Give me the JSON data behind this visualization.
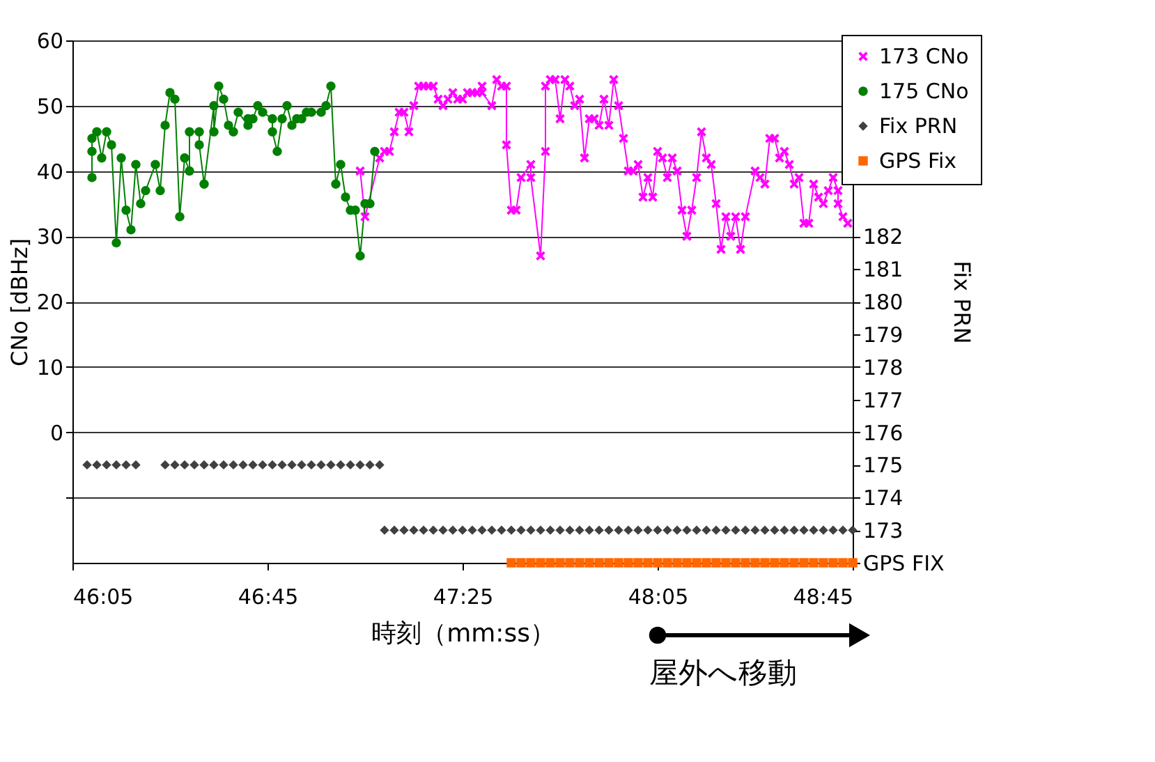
{
  "chart_data": {
    "type": "line",
    "xlabel": "時刻（mm:ss）",
    "ylabel": "CNo [dBHz]",
    "y2label": "Fix PRN",
    "xlim": [
      2765,
      2925
    ],
    "xticks": [
      {
        "value": 2765,
        "label": "46:05"
      },
      {
        "value": 2805,
        "label": "46:45"
      },
      {
        "value": 2845,
        "label": "47:25"
      },
      {
        "value": 2885,
        "label": "48:05"
      },
      {
        "value": 2925,
        "label": "48:45"
      }
    ],
    "ylim": [
      -20,
      60
    ],
    "yticks": [
      {
        "value": -10,
        "label": null
      },
      0,
      10,
      20,
      30,
      40,
      50,
      60
    ],
    "y2lim": [
      172,
      188
    ],
    "y2ticks": [
      {
        "value": 172,
        "label": "GPS FIX"
      },
      173,
      174,
      175,
      176,
      177,
      178,
      179,
      180,
      181,
      182
    ],
    "grid": "y",
    "legend": "top right",
    "annotations": [
      "屋外へ移動"
    ],
    "series": [
      {
        "name": "173 CNo",
        "color": "#ff00ff",
        "marker": "cross",
        "x": [
          2824,
          2825,
          2828,
          2829,
          2830,
          2831,
          2832,
          2833,
          2834,
          2835,
          2836,
          2837,
          2838,
          2839,
          2840,
          2841,
          2842,
          2843,
          2844,
          2845,
          2846,
          2847,
          2848,
          2849,
          2849,
          2851,
          2852,
          2853,
          2854,
          2854,
          2855,
          2856,
          2857,
          2859,
          2859,
          2861,
          2862,
          2862,
          2863,
          2864,
          2865,
          2866,
          2867,
          2868,
          2869,
          2870,
          2871,
          2872,
          2873,
          2874,
          2875,
          2876,
          2877,
          2878,
          2879,
          2880,
          2881,
          2882,
          2883,
          2884,
          2885,
          2886,
          2887,
          2888,
          2889,
          2890,
          2891,
          2892,
          2893,
          2894,
          2895,
          2896,
          2897,
          2898,
          2899,
          2900,
          2901,
          2902,
          2903,
          2905,
          2906,
          2907,
          2908,
          2909,
          2910,
          2911,
          2912,
          2913,
          2914,
          2915,
          2916,
          2917,
          2918,
          2919,
          2920,
          2921,
          2922,
          2922,
          2923,
          2924
        ],
        "values": [
          40,
          33,
          42,
          43,
          43,
          46,
          49,
          49,
          46,
          50,
          53,
          53,
          53,
          53,
          51,
          50,
          51,
          52,
          51,
          51,
          52,
          52,
          52,
          53,
          52,
          50,
          54,
          53,
          53,
          44,
          34,
          34,
          39,
          41,
          39,
          27,
          43,
          53,
          54,
          54,
          48,
          54,
          53,
          50,
          51,
          42,
          48,
          48,
          47,
          51,
          47,
          54,
          50,
          45,
          40,
          40,
          41,
          36,
          39,
          36,
          43,
          42,
          39,
          42,
          40,
          34,
          30,
          34,
          39,
          46,
          42,
          41,
          35,
          28,
          33,
          30,
          33,
          28,
          33,
          40,
          39,
          38,
          45,
          45,
          42,
          43,
          41,
          38,
          39,
          32,
          32,
          38,
          36,
          35,
          37,
          39,
          37,
          35,
          33,
          32
        ]
      },
      {
        "name": "175 CNo",
        "color": "#008000",
        "marker": "circle",
        "x": [
          2769,
          2769,
          2769,
          2770,
          2771,
          2772,
          2773,
          2774,
          2775,
          2776,
          2777,
          2778,
          2779,
          2780,
          2782,
          2783,
          2784,
          2785,
          2786,
          2787,
          2788,
          2789,
          2789,
          2791,
          2791,
          2792,
          2794,
          2794,
          2795,
          2796,
          2797,
          2798,
          2799,
          2801,
          2801,
          2802,
          2803,
          2804,
          2806,
          2806,
          2807,
          2808,
          2809,
          2810,
          2811,
          2812,
          2813,
          2814,
          2816,
          2817,
          2818,
          2819,
          2820,
          2821,
          2822,
          2823,
          2824,
          2825,
          2826,
          2827
        ],
        "values": [
          39,
          43,
          45,
          46,
          42,
          46,
          44,
          29,
          42,
          34,
          31,
          41,
          35,
          37,
          41,
          37,
          47,
          52,
          51,
          33,
          42,
          40,
          46,
          46,
          44,
          38,
          50,
          46,
          53,
          51,
          47,
          46,
          49,
          47,
          48,
          48,
          50,
          49,
          48,
          46,
          43,
          48,
          50,
          47,
          48,
          48,
          49,
          49,
          49,
          50,
          53,
          38,
          41,
          36,
          34,
          34,
          27,
          35,
          35,
          43
        ]
      },
      {
        "name": "Fix PRN",
        "color": "#404040",
        "type": "scatter",
        "marker": "diamond",
        "axis": "y2",
        "x": [
          2768,
          2770,
          2772,
          2774,
          2776,
          2778,
          2784,
          2786,
          2788,
          2790,
          2792,
          2794,
          2796,
          2798,
          2800,
          2802,
          2804,
          2806,
          2808,
          2810,
          2812,
          2814,
          2816,
          2818,
          2820,
          2822,
          2824,
          2826,
          2828,
          2829,
          2831,
          2833,
          2835,
          2837,
          2839,
          2841,
          2843,
          2845,
          2847,
          2849,
          2851,
          2853,
          2855,
          2857,
          2859,
          2861,
          2863,
          2865,
          2867,
          2869,
          2871,
          2873,
          2875,
          2877,
          2879,
          2881,
          2883,
          2885,
          2887,
          2889,
          2891,
          2893,
          2895,
          2897,
          2899,
          2901,
          2903,
          2905,
          2907,
          2909,
          2911,
          2913,
          2915,
          2917,
          2919,
          2921,
          2923,
          2925
        ],
        "values": [
          175,
          175,
          175,
          175,
          175,
          175,
          175,
          175,
          175,
          175,
          175,
          175,
          175,
          175,
          175,
          175,
          175,
          175,
          175,
          175,
          175,
          175,
          175,
          175,
          175,
          175,
          175,
          175,
          175,
          173,
          173,
          173,
          173,
          173,
          173,
          173,
          173,
          173,
          173,
          173,
          173,
          173,
          173,
          173,
          173,
          173,
          173,
          173,
          173,
          173,
          173,
          173,
          173,
          173,
          173,
          173,
          173,
          173,
          173,
          173,
          173,
          173,
          173,
          173,
          173,
          173,
          173,
          173,
          173,
          173,
          173,
          173,
          173,
          173,
          173,
          173,
          173,
          173
        ]
      },
      {
        "name": "GPS Fix",
        "color": "#ff6600",
        "type": "scatter",
        "marker": "square",
        "axis": "y2",
        "x": [
          2855,
          2857,
          2859,
          2861,
          2863,
          2865,
          2867,
          2869,
          2871,
          2873,
          2875,
          2877,
          2879,
          2881,
          2883,
          2885,
          2887,
          2889,
          2891,
          2893,
          2895,
          2897,
          2899,
          2901,
          2903,
          2905,
          2907,
          2909,
          2911,
          2913,
          2915,
          2917,
          2919,
          2921,
          2923,
          2925
        ],
        "values": [
          172,
          172,
          172,
          172,
          172,
          172,
          172,
          172,
          172,
          172,
          172,
          172,
          172,
          172,
          172,
          172,
          172,
          172,
          172,
          172,
          172,
          172,
          172,
          172,
          172,
          172,
          172,
          172,
          172,
          172,
          172,
          172,
          172,
          172,
          172,
          172
        ]
      }
    ]
  }
}
